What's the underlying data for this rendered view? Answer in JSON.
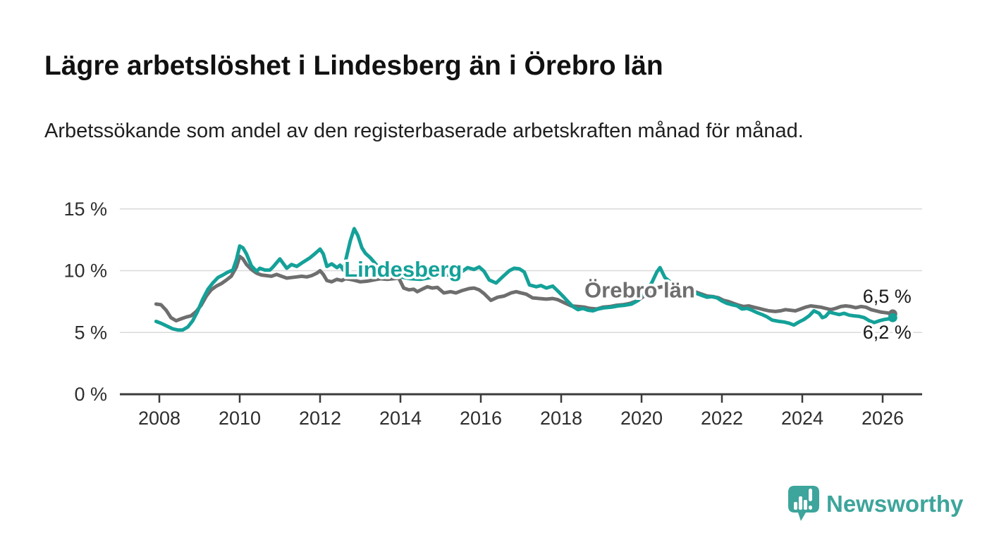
{
  "title": "Lägre arbetslöshet i Lindesberg än i Örebro län",
  "subtitle": "Arbetssökande som andel av den registerbaserade arbetskraften månad för månad.",
  "branding": {
    "logo_text": "Newsworthy",
    "logo_color": "#3da59b",
    "logo_icon": "newsworthy-speech-bubble-barchart-icon"
  },
  "colors": {
    "lindesberg_teal": "#14a199",
    "orebro_gray": "#6e6e6e",
    "gridline": "#d9d9d9",
    "axis": "#3b3b3b",
    "text": "#1a1a1a"
  },
  "chart_data": {
    "type": "line",
    "unit": "%",
    "grid": true,
    "y_axis": {
      "range": [
        0,
        15
      ],
      "ticks": [
        {
          "v": 0,
          "label": "0 %"
        },
        {
          "v": 5,
          "label": "5 %"
        },
        {
          "v": 10,
          "label": "10 %"
        },
        {
          "v": 15,
          "label": "15 %"
        }
      ]
    },
    "x_axis": {
      "range": [
        2007.9,
        2027.0
      ],
      "ticks": [
        {
          "v": 2008,
          "label": "2008"
        },
        {
          "v": 2010,
          "label": "2010"
        },
        {
          "v": 2012,
          "label": "2012"
        },
        {
          "v": 2014,
          "label": "2014"
        },
        {
          "v": 2016,
          "label": "2016"
        },
        {
          "v": 2018,
          "label": "2018"
        },
        {
          "v": 2020,
          "label": "2020"
        },
        {
          "v": 2022,
          "label": "2022"
        },
        {
          "v": 2024,
          "label": "2024"
        },
        {
          "v": 2026,
          "label": "2026"
        }
      ]
    },
    "series": [
      {
        "name": "Örebro län",
        "color": "#6e6e6e",
        "label_anchor": {
          "x": 2018.58,
          "y": 8.45
        },
        "end_label": "6,5 %",
        "end_label_offset_y": -16,
        "points": [
          [
            2007.92,
            7.3
          ],
          [
            2008.04,
            7.25
          ],
          [
            2008.17,
            6.8
          ],
          [
            2008.29,
            6.2
          ],
          [
            2008.42,
            5.95
          ],
          [
            2008.54,
            6.1
          ],
          [
            2008.67,
            6.25
          ],
          [
            2008.79,
            6.35
          ],
          [
            2008.92,
            6.7
          ],
          [
            2009.04,
            7.2
          ],
          [
            2009.17,
            7.95
          ],
          [
            2009.29,
            8.45
          ],
          [
            2009.42,
            8.75
          ],
          [
            2009.54,
            8.95
          ],
          [
            2009.67,
            9.25
          ],
          [
            2009.79,
            9.55
          ],
          [
            2009.92,
            10.3
          ],
          [
            2010.0,
            11.15
          ],
          [
            2010.08,
            10.95
          ],
          [
            2010.17,
            10.5
          ],
          [
            2010.29,
            10.1
          ],
          [
            2010.42,
            9.8
          ],
          [
            2010.54,
            9.65
          ],
          [
            2010.67,
            9.6
          ],
          [
            2010.79,
            9.55
          ],
          [
            2010.92,
            9.7
          ],
          [
            2011.04,
            9.55
          ],
          [
            2011.17,
            9.4
          ],
          [
            2011.29,
            9.45
          ],
          [
            2011.42,
            9.5
          ],
          [
            2011.54,
            9.55
          ],
          [
            2011.67,
            9.5
          ],
          [
            2011.79,
            9.6
          ],
          [
            2011.92,
            9.8
          ],
          [
            2012.0,
            10.0
          ],
          [
            2012.08,
            9.7
          ],
          [
            2012.17,
            9.2
          ],
          [
            2012.29,
            9.1
          ],
          [
            2012.42,
            9.3
          ],
          [
            2012.54,
            9.2
          ],
          [
            2012.63,
            9.35
          ],
          [
            2012.75,
            9.3
          ],
          [
            2012.88,
            9.2
          ],
          [
            2013.0,
            9.1
          ],
          [
            2013.17,
            9.15
          ],
          [
            2013.33,
            9.25
          ],
          [
            2013.5,
            9.35
          ],
          [
            2013.67,
            9.3
          ],
          [
            2013.83,
            9.35
          ],
          [
            2013.96,
            9.4
          ],
          [
            2014.08,
            8.6
          ],
          [
            2014.21,
            8.45
          ],
          [
            2014.33,
            8.5
          ],
          [
            2014.42,
            8.3
          ],
          [
            2014.54,
            8.5
          ],
          [
            2014.67,
            8.7
          ],
          [
            2014.79,
            8.6
          ],
          [
            2014.92,
            8.65
          ],
          [
            2015.08,
            8.2
          ],
          [
            2015.25,
            8.3
          ],
          [
            2015.38,
            8.2
          ],
          [
            2015.54,
            8.4
          ],
          [
            2015.71,
            8.55
          ],
          [
            2015.83,
            8.6
          ],
          [
            2015.96,
            8.45
          ],
          [
            2016.08,
            8.15
          ],
          [
            2016.25,
            7.6
          ],
          [
            2016.42,
            7.85
          ],
          [
            2016.58,
            7.95
          ],
          [
            2016.75,
            8.2
          ],
          [
            2016.88,
            8.3
          ],
          [
            2017.0,
            8.2
          ],
          [
            2017.13,
            8.1
          ],
          [
            2017.29,
            7.8
          ],
          [
            2017.46,
            7.75
          ],
          [
            2017.63,
            7.7
          ],
          [
            2017.79,
            7.75
          ],
          [
            2017.92,
            7.65
          ],
          [
            2018.08,
            7.4
          ],
          [
            2018.25,
            7.15
          ],
          [
            2018.42,
            7.1
          ],
          [
            2018.58,
            7.05
          ],
          [
            2018.71,
            6.95
          ],
          [
            2018.88,
            6.9
          ],
          [
            2019.04,
            7.05
          ],
          [
            2019.21,
            7.1
          ],
          [
            2019.38,
            7.2
          ],
          [
            2019.54,
            7.25
          ],
          [
            2019.71,
            7.35
          ],
          [
            2019.88,
            7.55
          ],
          [
            2020.04,
            7.9
          ],
          [
            2020.21,
            8.3
          ],
          [
            2020.38,
            8.6
          ],
          [
            2020.5,
            8.7
          ],
          [
            2020.67,
            8.6
          ],
          [
            2020.83,
            8.5
          ],
          [
            2021.0,
            8.45
          ],
          [
            2021.17,
            8.4
          ],
          [
            2021.33,
            8.3
          ],
          [
            2021.5,
            8.1
          ],
          [
            2021.63,
            7.95
          ],
          [
            2021.79,
            7.9
          ],
          [
            2021.92,
            7.8
          ],
          [
            2022.04,
            7.6
          ],
          [
            2022.17,
            7.5
          ],
          [
            2022.29,
            7.35
          ],
          [
            2022.42,
            7.2
          ],
          [
            2022.54,
            7.1
          ],
          [
            2022.67,
            7.15
          ],
          [
            2022.79,
            7.05
          ],
          [
            2022.92,
            6.95
          ],
          [
            2023.04,
            6.85
          ],
          [
            2023.17,
            6.75
          ],
          [
            2023.33,
            6.7
          ],
          [
            2023.46,
            6.75
          ],
          [
            2023.58,
            6.85
          ],
          [
            2023.71,
            6.8
          ],
          [
            2023.83,
            6.75
          ],
          [
            2023.96,
            6.9
          ],
          [
            2024.08,
            7.05
          ],
          [
            2024.21,
            7.15
          ],
          [
            2024.33,
            7.1
          ],
          [
            2024.46,
            7.05
          ],
          [
            2024.58,
            6.95
          ],
          [
            2024.71,
            6.85
          ],
          [
            2024.83,
            6.95
          ],
          [
            2024.96,
            7.1
          ],
          [
            2025.08,
            7.15
          ],
          [
            2025.21,
            7.1
          ],
          [
            2025.33,
            7.0
          ],
          [
            2025.46,
            7.1
          ],
          [
            2025.58,
            7.05
          ],
          [
            2025.71,
            6.85
          ],
          [
            2025.83,
            6.75
          ],
          [
            2025.96,
            6.65
          ],
          [
            2026.08,
            6.6
          ],
          [
            2026.17,
            6.55
          ],
          [
            2026.25,
            6.5
          ]
        ]
      },
      {
        "name": "Lindesberg",
        "color": "#14a199",
        "label_anchor": {
          "x": 2012.6,
          "y": 10.15
        },
        "end_label": "6,2 %",
        "end_label_offset_y": 30,
        "points": [
          [
            2007.92,
            5.9
          ],
          [
            2008.04,
            5.75
          ],
          [
            2008.17,
            5.55
          ],
          [
            2008.33,
            5.3
          ],
          [
            2008.46,
            5.2
          ],
          [
            2008.58,
            5.2
          ],
          [
            2008.71,
            5.45
          ],
          [
            2008.83,
            5.95
          ],
          [
            2008.95,
            6.7
          ],
          [
            2009.08,
            7.7
          ],
          [
            2009.21,
            8.5
          ],
          [
            2009.33,
            9.0
          ],
          [
            2009.46,
            9.45
          ],
          [
            2009.58,
            9.65
          ],
          [
            2009.71,
            9.9
          ],
          [
            2009.83,
            10.05
          ],
          [
            2009.92,
            10.9
          ],
          [
            2010.0,
            12.0
          ],
          [
            2010.08,
            11.85
          ],
          [
            2010.17,
            11.35
          ],
          [
            2010.29,
            10.4
          ],
          [
            2010.42,
            9.95
          ],
          [
            2010.5,
            10.2
          ],
          [
            2010.63,
            10.05
          ],
          [
            2010.75,
            10.05
          ],
          [
            2010.83,
            10.3
          ],
          [
            2010.92,
            10.65
          ],
          [
            2011.0,
            10.95
          ],
          [
            2011.08,
            10.6
          ],
          [
            2011.17,
            10.2
          ],
          [
            2011.29,
            10.5
          ],
          [
            2011.42,
            10.35
          ],
          [
            2011.58,
            10.7
          ],
          [
            2011.75,
            11.05
          ],
          [
            2011.88,
            11.4
          ],
          [
            2012.0,
            11.75
          ],
          [
            2012.08,
            11.35
          ],
          [
            2012.17,
            10.35
          ],
          [
            2012.29,
            10.55
          ],
          [
            2012.42,
            10.25
          ],
          [
            2012.5,
            10.45
          ],
          [
            2012.58,
            10.05
          ],
          [
            2012.67,
            11.3
          ],
          [
            2012.75,
            12.4
          ],
          [
            2012.85,
            13.4
          ],
          [
            2012.94,
            12.85
          ],
          [
            2013.04,
            11.85
          ],
          [
            2013.13,
            11.4
          ],
          [
            2013.25,
            11.05
          ],
          [
            2013.38,
            10.55
          ],
          [
            2013.5,
            10.15
          ],
          [
            2013.67,
            9.85
          ],
          [
            2013.83,
            9.6
          ],
          [
            2014.0,
            9.5
          ],
          [
            2014.25,
            9.35
          ],
          [
            2014.5,
            9.3
          ],
          [
            2014.75,
            9.45
          ],
          [
            2015.0,
            9.55
          ],
          [
            2015.25,
            9.7
          ],
          [
            2015.5,
            9.85
          ],
          [
            2015.67,
            10.25
          ],
          [
            2015.83,
            10.1
          ],
          [
            2015.96,
            10.3
          ],
          [
            2016.08,
            9.95
          ],
          [
            2016.21,
            9.25
          ],
          [
            2016.38,
            9.0
          ],
          [
            2016.54,
            9.5
          ],
          [
            2016.71,
            10.0
          ],
          [
            2016.83,
            10.2
          ],
          [
            2016.96,
            10.15
          ],
          [
            2017.08,
            9.9
          ],
          [
            2017.21,
            8.85
          ],
          [
            2017.38,
            8.7
          ],
          [
            2017.5,
            8.8
          ],
          [
            2017.63,
            8.6
          ],
          [
            2017.79,
            8.75
          ],
          [
            2017.92,
            8.35
          ],
          [
            2018.04,
            7.95
          ],
          [
            2018.17,
            7.5
          ],
          [
            2018.29,
            7.1
          ],
          [
            2018.42,
            6.85
          ],
          [
            2018.54,
            6.95
          ],
          [
            2018.67,
            6.8
          ],
          [
            2018.79,
            6.75
          ],
          [
            2018.92,
            6.9
          ],
          [
            2019.08,
            7.0
          ],
          [
            2019.25,
            7.05
          ],
          [
            2019.42,
            7.15
          ],
          [
            2019.58,
            7.2
          ],
          [
            2019.75,
            7.3
          ],
          [
            2019.92,
            7.6
          ],
          [
            2020.08,
            8.3
          ],
          [
            2020.25,
            9.0
          ],
          [
            2020.38,
            9.9
          ],
          [
            2020.46,
            10.25
          ],
          [
            2020.58,
            9.45
          ],
          [
            2020.71,
            9.1
          ],
          [
            2020.88,
            8.9
          ],
          [
            2021.04,
            8.6
          ],
          [
            2021.21,
            8.4
          ],
          [
            2021.38,
            8.15
          ],
          [
            2021.5,
            8.0
          ],
          [
            2021.63,
            7.85
          ],
          [
            2021.75,
            7.9
          ],
          [
            2021.88,
            7.8
          ],
          [
            2022.0,
            7.55
          ],
          [
            2022.13,
            7.35
          ],
          [
            2022.25,
            7.25
          ],
          [
            2022.38,
            7.15
          ],
          [
            2022.5,
            6.9
          ],
          [
            2022.63,
            6.95
          ],
          [
            2022.75,
            6.8
          ],
          [
            2022.88,
            6.6
          ],
          [
            2023.0,
            6.45
          ],
          [
            2023.13,
            6.25
          ],
          [
            2023.25,
            6.0
          ],
          [
            2023.42,
            5.9
          ],
          [
            2023.54,
            5.85
          ],
          [
            2023.67,
            5.75
          ],
          [
            2023.79,
            5.6
          ],
          [
            2023.92,
            5.85
          ],
          [
            2024.04,
            6.05
          ],
          [
            2024.17,
            6.35
          ],
          [
            2024.29,
            6.75
          ],
          [
            2024.42,
            6.55
          ],
          [
            2024.5,
            6.2
          ],
          [
            2024.58,
            6.3
          ],
          [
            2024.67,
            6.65
          ],
          [
            2024.79,
            6.55
          ],
          [
            2024.92,
            6.45
          ],
          [
            2025.04,
            6.55
          ],
          [
            2025.17,
            6.4
          ],
          [
            2025.29,
            6.35
          ],
          [
            2025.42,
            6.3
          ],
          [
            2025.54,
            6.2
          ],
          [
            2025.67,
            5.95
          ],
          [
            2025.79,
            5.8
          ],
          [
            2025.92,
            5.95
          ],
          [
            2026.04,
            6.05
          ],
          [
            2026.15,
            6.1
          ],
          [
            2026.25,
            6.2
          ]
        ]
      }
    ]
  }
}
